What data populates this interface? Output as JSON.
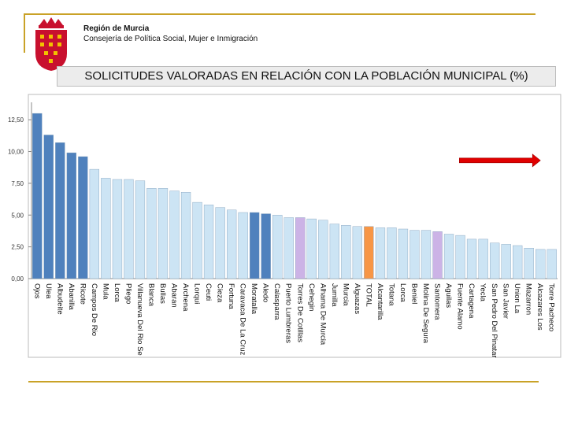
{
  "header": {
    "org_name": "Región de Murcia",
    "dept_name": "Consejería de Política Social, Mujer e Inmigración",
    "title": "SOLICITUDES VALORADAS EN RELACIÓN CON LA POBLACIÓN MUNICIPAL (%)"
  },
  "colors": {
    "accent_line": "#c9a227",
    "emblem_red": "#c8102e",
    "bar_dark": "#4f81bd",
    "bar_light": "#cce4f4",
    "bar_total": "#f79646",
    "bar_lilac": "#ccb3e6",
    "arrow": "#e00000"
  },
  "chart_data": {
    "type": "bar",
    "title": "SOLICITUDES VALORADAS EN RELACIÓN CON LA POBLACIÓN MUNICIPAL (%)",
    "xlabel": "",
    "ylabel": "",
    "ylim": [
      0,
      13.5
    ],
    "yticks": [
      0,
      2.5,
      5,
      7.5,
      10,
      12.5
    ],
    "ytick_labels": [
      "0,00",
      "2,50",
      "5,00",
      "7,50",
      "10,00",
      "12,50"
    ],
    "grid": false,
    "categories": [
      "Ojos",
      "Ulea",
      "Albudeite",
      "Abanilla",
      "Ricote",
      "Campos De Rio",
      "Mula",
      "Lorca",
      "Pliego",
      "Villanueva Del Rio Se",
      "Blanca",
      "Bullas",
      "Abaran",
      "Archena",
      "Lorqui",
      "Ceuti",
      "Cieza",
      "Fortuna",
      "Caravaca De La Cruz",
      "Moratalla",
      "Aledo",
      "Calasparra",
      "Puerto Lumbreras",
      "Torres De Cotillas",
      "Cehegin",
      "Alhama De Murcia",
      "Jumilla",
      "Murcia",
      "Alguazas",
      "TOTAL",
      "Alcantarilla",
      "Totana",
      "Lorca",
      "Beniel",
      "Molina De Segura",
      "Santomera",
      "Aguilas",
      "Fuente Alamo",
      "Cartagena",
      "Yecla",
      "San Pedro Del Pinatar",
      "San Javier",
      "Union La",
      "Mazarron",
      "Alcazares Los",
      "Torre Pacheco"
    ],
    "values": [
      13.0,
      11.3,
      10.7,
      9.9,
      9.6,
      8.6,
      7.9,
      7.8,
      7.8,
      7.7,
      7.1,
      7.1,
      6.9,
      6.8,
      6.0,
      5.8,
      5.6,
      5.4,
      5.2,
      5.2,
      5.1,
      5.0,
      4.8,
      4.8,
      4.7,
      4.6,
      4.3,
      4.2,
      4.1,
      4.1,
      4.0,
      4.0,
      3.9,
      3.8,
      3.8,
      3.7,
      3.5,
      3.4,
      3.1,
      3.1,
      2.8,
      2.7,
      2.6,
      2.4,
      2.3,
      2.3
    ],
    "color_groups": [
      "dark",
      "dark",
      "dark",
      "dark",
      "dark",
      "light",
      "light",
      "light",
      "light",
      "light",
      "light",
      "light",
      "light",
      "light",
      "light",
      "light",
      "light",
      "light",
      "light",
      "dark",
      "dark",
      "light",
      "light",
      "lilac",
      "light",
      "light",
      "light",
      "light",
      "light",
      "total",
      "light",
      "light",
      "light",
      "light",
      "light",
      "lilac",
      "light",
      "light",
      "light",
      "light",
      "light",
      "light",
      "light",
      "light",
      "light",
      "light"
    ],
    "annotations": [
      {
        "type": "arrow",
        "direction": "right",
        "color": "#e00000"
      }
    ]
  }
}
